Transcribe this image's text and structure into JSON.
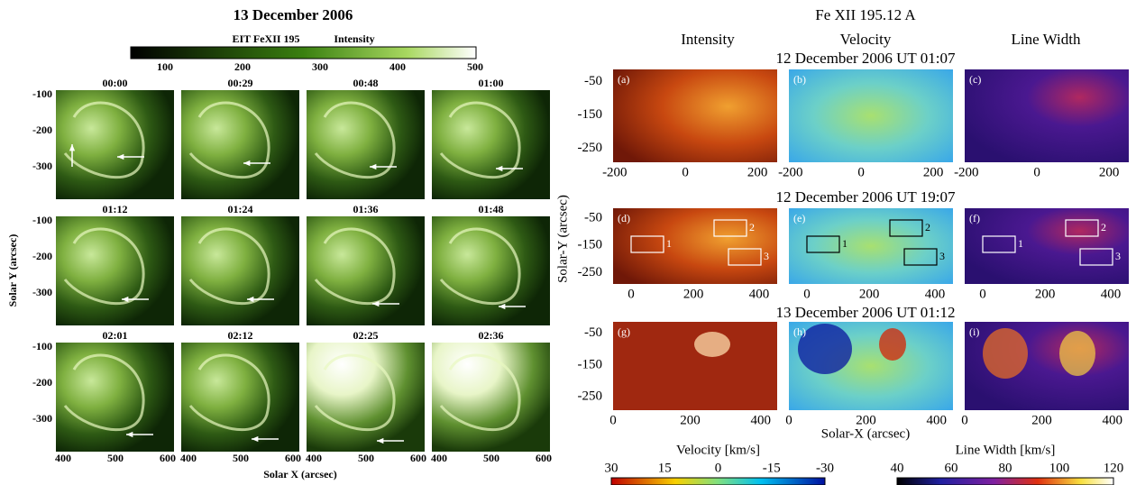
{
  "left": {
    "title": "13 December 2006",
    "colorbar": {
      "name": "EIT FeXII 195",
      "label": "Intensity",
      "ticks": [
        100,
        200,
        300,
        400,
        500
      ]
    },
    "ylabel": "Solar Y (arcsec)",
    "xlabel": "Solar X (arcsec)",
    "yticks": [
      -100,
      -200,
      -300
    ],
    "xticks": [
      400,
      500,
      600
    ],
    "panels": [
      "00:00",
      "00:29",
      "00:48",
      "01:00",
      "01:12",
      "01:24",
      "01:36",
      "01:48",
      "02:01",
      "02:12",
      "02:25",
      "02:36"
    ]
  },
  "right": {
    "title": "Fe XII 195.12 A",
    "columns": [
      "Intensity",
      "Velocity",
      "Line Width"
    ],
    "rows": [
      {
        "title": "12 December 2006 UT 01:07",
        "panels": [
          "(a)",
          "(b)",
          "(c)"
        ],
        "xticks": [
          -200,
          0,
          200
        ]
      },
      {
        "title": "12 December 2006 UT 19:07",
        "panels": [
          "(d)",
          "(e)",
          "(f)"
        ],
        "xticks": [
          0,
          200,
          400
        ]
      },
      {
        "title": "13 December 2006 UT 01:12",
        "panels": [
          "(g)",
          "(h)",
          "(i)"
        ],
        "xticks": [
          0,
          200,
          400
        ]
      }
    ],
    "yticks": [
      -50,
      -150,
      -250
    ],
    "ylabel": "Solar-Y (arcsec)",
    "xlabel": "Solar-X (arcsec)",
    "box_labels": [
      "1",
      "2",
      "3"
    ],
    "colorbars": [
      {
        "label": "Velocity [km/s]",
        "ticks": [
          30,
          15,
          0,
          -15,
          -30
        ]
      },
      {
        "label": "Line Width [km/s]",
        "ticks": [
          40,
          60,
          80,
          100,
          120
        ]
      }
    ]
  }
}
